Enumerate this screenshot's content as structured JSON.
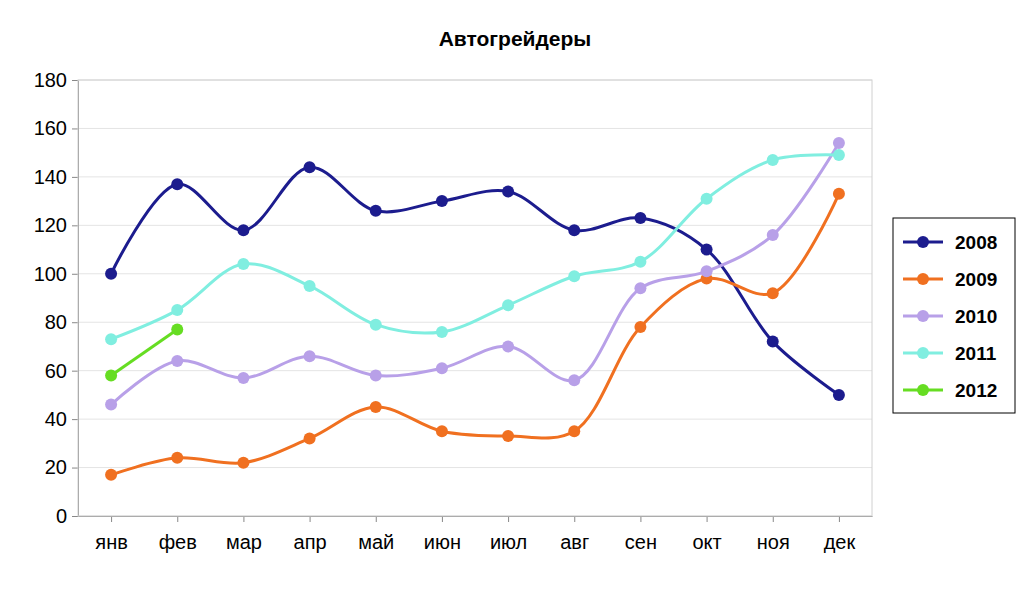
{
  "chart_data": {
    "type": "line",
    "title": "Автогрейдеры",
    "categories": [
      "янв",
      "фев",
      "мар",
      "апр",
      "май",
      "июн",
      "июл",
      "авг",
      "сен",
      "окт",
      "ноя",
      "дек"
    ],
    "series": [
      {
        "name": "2008",
        "color": "#1c1c8e",
        "marker": "circle",
        "values": [
          100,
          137,
          118,
          144,
          126,
          130,
          134,
          118,
          123,
          110,
          72,
          50
        ]
      },
      {
        "name": "2009",
        "color": "#f07020",
        "marker": "circle",
        "values": [
          17,
          24,
          22,
          32,
          45,
          35,
          33,
          35,
          78,
          98,
          92,
          133
        ]
      },
      {
        "name": "2010",
        "color": "#b8a0e8",
        "marker": "circle",
        "values": [
          46,
          64,
          57,
          66,
          58,
          61,
          70,
          56,
          94,
          101,
          116,
          154
        ]
      },
      {
        "name": "2011",
        "color": "#80eee0",
        "marker": "circle",
        "values": [
          73,
          85,
          104,
          95,
          79,
          76,
          87,
          99,
          105,
          131,
          147,
          149
        ]
      },
      {
        "name": "2012",
        "color": "#66dd22",
        "marker": "circle",
        "values": [
          58,
          77,
          null,
          null,
          null,
          null,
          null,
          null,
          null,
          null,
          null,
          null
        ]
      }
    ],
    "ylim": [
      0,
      180
    ],
    "yticks": [
      0,
      20,
      40,
      60,
      80,
      100,
      120,
      140,
      160,
      180
    ],
    "grid": true,
    "legend": "right"
  }
}
